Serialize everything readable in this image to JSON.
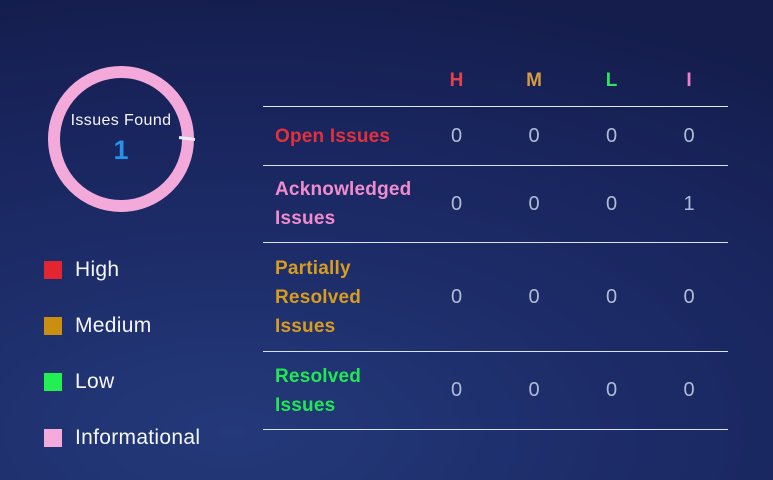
{
  "donut": {
    "label": "Issues Found",
    "count": "1",
    "count_color": "#2492e8",
    "ring_color": "#f3aada"
  },
  "legend": {
    "items": [
      {
        "label": "High",
        "color": "#e32531"
      },
      {
        "label": "Medium",
        "color": "#ca8e10"
      },
      {
        "label": "Low",
        "color": "#21ef52"
      },
      {
        "label": "Informational",
        "color": "#f4abdb"
      }
    ]
  },
  "table": {
    "columns": [
      {
        "key": "H",
        "color": "#e8414e"
      },
      {
        "key": "M",
        "color": "#d89b40"
      },
      {
        "key": "L",
        "color": "#2ee65a"
      },
      {
        "key": "I",
        "color": "#f080c2"
      }
    ],
    "value_color": "#b0bcd4",
    "rows": [
      {
        "label": "Open Issues",
        "color": "#e3303c",
        "values": [
          "0",
          "0",
          "0",
          "0"
        ]
      },
      {
        "label": "Acknowledged Issues",
        "color": "#f08ccd",
        "values": [
          "0",
          "0",
          "0",
          "1"
        ]
      },
      {
        "label": "Partially Resolved Issues",
        "color": "#d89c1e",
        "values": [
          "0",
          "0",
          "0",
          "0"
        ]
      },
      {
        "label": "Resolved Issues",
        "color": "#1fe853",
        "values": [
          "0",
          "0",
          "0",
          "0"
        ]
      }
    ]
  }
}
